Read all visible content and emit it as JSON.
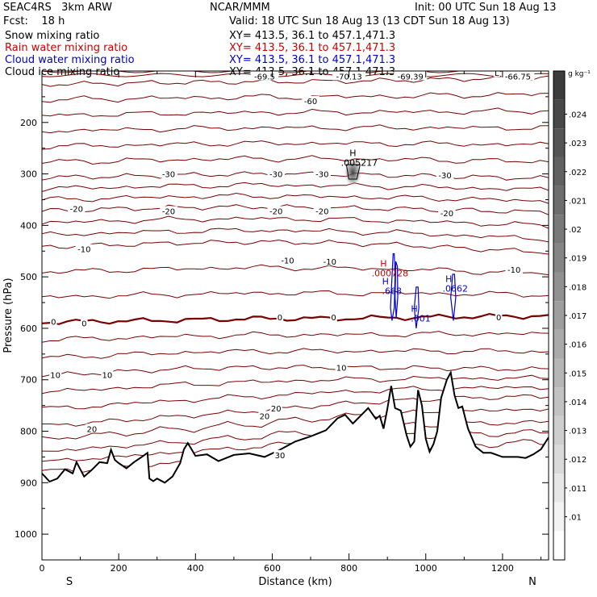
{
  "header": {
    "model": "SEAC4RS   3km ARW",
    "center": "NCAR/MMM",
    "init": "Init: 00 UTC Sun 18 Aug 13",
    "fcst": "Fcst:    18 h",
    "valid": "Valid: 18 UTC Sun 18 Aug 13 (13 CDT Sun 18 Aug 13)",
    "fields": [
      {
        "name": "Snow mixing ratio",
        "xy": "XY= 413.5, 36.1 to 457.1,471.3",
        "color": "#000000"
      },
      {
        "name": "Rain water mixing ratio",
        "xy": "XY= 413.5, 36.1 to 457.1,471.3",
        "color": "#cc0000"
      },
      {
        "name": "Cloud water mixing ratio",
        "xy": "XY= 413.5, 36.1 to 457.1,471.3",
        "color": "#0000cc"
      },
      {
        "name": "Cloud ice mixing ratio",
        "xy": "XY= 413.5, 36.1 to 457.1,471.3",
        "color": "#000000"
      }
    ]
  },
  "chart_data": {
    "type": "contour",
    "xlabel": "Distance (km)",
    "ylabel": "Pressure (hPa)",
    "xlim": [
      0,
      1320
    ],
    "ylim": [
      1050,
      100
    ],
    "x_ticks": [
      0,
      200,
      400,
      600,
      800,
      1000,
      1200
    ],
    "y_ticks": [
      200,
      300,
      400,
      500,
      600,
      700,
      800,
      900,
      1000
    ],
    "x_end_labels": [
      "S",
      "N"
    ],
    "colorbar": {
      "unit": "g kg⁻¹",
      "labels": [
        ".024",
        ".023",
        ".022",
        ".021",
        ".02",
        ".019",
        ".018",
        ".017",
        ".016",
        ".015",
        ".014",
        ".013",
        ".012",
        ".011",
        ".01"
      ]
    },
    "temperature_contours": [
      {
        "value": -60,
        "label": "-60",
        "p": [
          126,
          124,
          122,
          121,
          120,
          118,
          115,
          112
        ]
      },
      {
        "value": -30,
        "label": "-30",
        "p": [
          307,
          305,
          302,
          300,
          301,
          303,
          306,
          309
        ]
      },
      {
        "value": -20,
        "label": "-20",
        "p": [
          372,
          368,
          365,
          364,
          366,
          368,
          371,
          375
        ]
      },
      {
        "value": -10,
        "label": "-10",
        "p": [
          442,
          438,
          434,
          432,
          434,
          438,
          446,
          452
        ]
      },
      {
        "value": 0,
        "label": "0",
        "p": [
          588,
          586,
          584,
          581,
          581,
          579,
          577,
          576
        ]
      },
      {
        "value": 10,
        "label": "10",
        "p": [
          692,
          685,
          678,
          676,
          676,
          677,
          678,
          680
        ]
      },
      {
        "value": 20,
        "label": "20",
        "p": [
          790,
          780,
          770,
          760,
          748,
          740,
          735,
          732
        ]
      }
    ],
    "labels": [
      {
        "text": "-69.5",
        "x": 580,
        "p": 110
      },
      {
        "text": "-70.13",
        "x": 800,
        "p": 110
      },
      {
        "text": "-69.39",
        "x": 960,
        "p": 110
      },
      {
        "text": "L",
        "x": 1185,
        "p": 103
      },
      {
        "text": "-66.75",
        "x": 1240,
        "p": 110
      },
      {
        "text": "-60",
        "x": 700,
        "p": 158
      },
      {
        "text": "-30",
        "x": 330,
        "p": 300
      },
      {
        "text": "-30",
        "x": 610,
        "p": 300
      },
      {
        "text": "-30",
        "x": 730,
        "p": 300
      },
      {
        "text": "-30",
        "x": 1050,
        "p": 302
      },
      {
        "text": "-20",
        "x": 90,
        "p": 367
      },
      {
        "text": "-20",
        "x": 330,
        "p": 372
      },
      {
        "text": "-20",
        "x": 610,
        "p": 372
      },
      {
        "text": "-20",
        "x": 730,
        "p": 372
      },
      {
        "text": "-20",
        "x": 1055,
        "p": 376
      },
      {
        "text": "-10",
        "x": 110,
        "p": 446
      },
      {
        "text": "-10",
        "x": 640,
        "p": 468
      },
      {
        "text": "-10",
        "x": 750,
        "p": 470
      },
      {
        "text": "-10",
        "x": 1230,
        "p": 486
      },
      {
        "text": "0",
        "x": 30,
        "p": 587
      },
      {
        "text": "0",
        "x": 110,
        "p": 590
      },
      {
        "text": "0",
        "x": 620,
        "p": 578
      },
      {
        "text": "0",
        "x": 760,
        "p": 578
      },
      {
        "text": "0",
        "x": 1190,
        "p": 578
      },
      {
        "text": "10",
        "x": 35,
        "p": 690
      },
      {
        "text": "10",
        "x": 170,
        "p": 690
      },
      {
        "text": "10",
        "x": 780,
        "p": 676
      },
      {
        "text": "20",
        "x": 130,
        "p": 795
      },
      {
        "text": "20",
        "x": 580,
        "p": 770
      },
      {
        "text": "20",
        "x": 610,
        "p": 755
      },
      {
        "text": "30",
        "x": 620,
        "p": 846
      }
    ],
    "maxima": [
      {
        "mark": "H",
        "value": ".005217",
        "x": 810,
        "p": 265,
        "color": "#000000"
      },
      {
        "mark": "H",
        "value": ".000728",
        "x": 890,
        "p": 480,
        "color": "#cc0000"
      },
      {
        "mark": "H",
        "value": ".668",
        "x": 895,
        "p": 515,
        "color": "#0000cc"
      },
      {
        "mark": "H",
        "value": ".001",
        "x": 970,
        "p": 568,
        "color": "#0000cc"
      },
      {
        "mark": "H",
        "value": ".0662",
        "x": 1060,
        "p": 510,
        "color": "#0000cc"
      }
    ],
    "terrain": {
      "x": [
        0,
        20,
        40,
        60,
        80,
        90,
        110,
        130,
        150,
        170,
        180,
        190,
        200,
        220,
        240,
        260,
        275,
        280,
        290,
        300,
        320,
        340,
        360,
        370,
        380,
        400,
        430,
        460,
        500,
        540,
        580,
        620,
        660,
        700,
        740,
        770,
        790,
        810,
        830,
        850,
        870,
        880,
        890,
        900,
        910,
        920,
        935,
        950,
        960,
        970,
        980,
        990,
        1000,
        1010,
        1020,
        1030,
        1040,
        1055,
        1065,
        1075,
        1085,
        1095,
        1110,
        1130,
        1150,
        1170,
        1200,
        1240,
        1260,
        1280,
        1300,
        1320
      ],
      "p": [
        882,
        898,
        892,
        874,
        882,
        860,
        888,
        875,
        860,
        862,
        836,
        856,
        862,
        872,
        860,
        850,
        842,
        892,
        897,
        892,
        900,
        888,
        862,
        835,
        823,
        848,
        845,
        858,
        846,
        843,
        850,
        836,
        820,
        810,
        798,
        775,
        768,
        785,
        770,
        755,
        776,
        770,
        795,
        756,
        712,
        755,
        760,
        808,
        830,
        820,
        720,
        750,
        815,
        840,
        825,
        800,
        735,
        700,
        686,
        730,
        755,
        752,
        795,
        830,
        842,
        842,
        850,
        850,
        852,
        845,
        835,
        812
      ]
    }
  }
}
